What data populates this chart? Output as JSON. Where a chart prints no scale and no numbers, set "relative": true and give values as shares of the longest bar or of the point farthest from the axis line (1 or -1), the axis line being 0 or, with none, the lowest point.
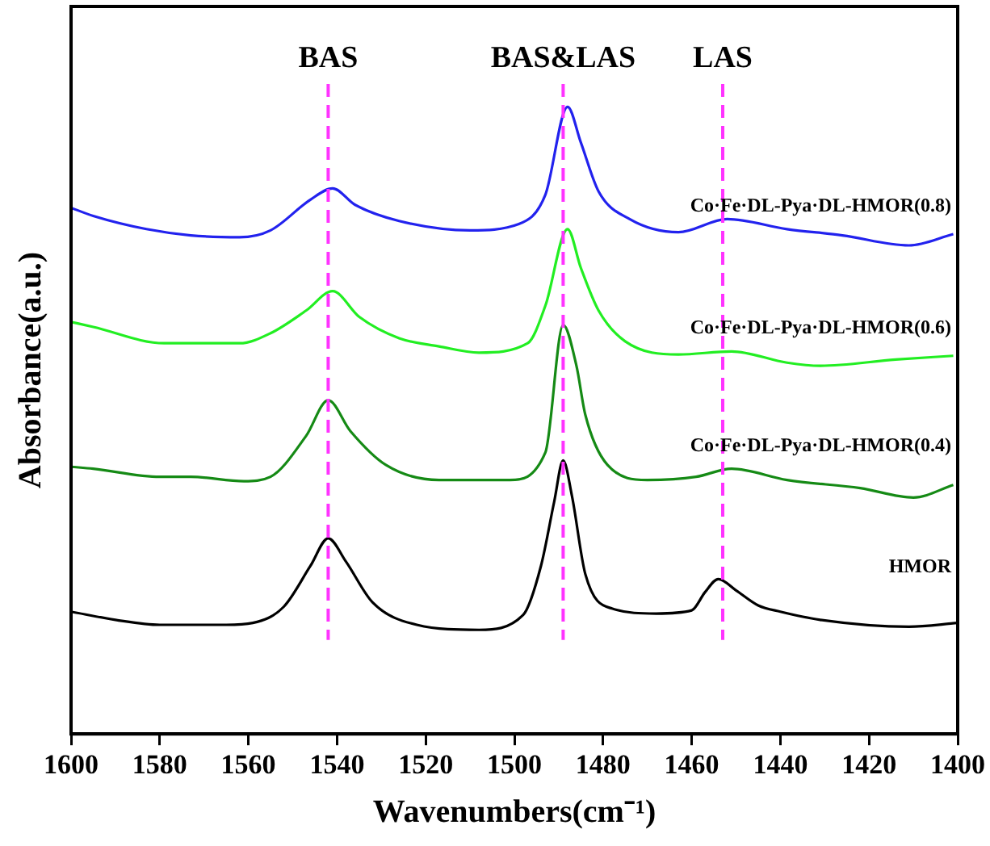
{
  "chart_data": {
    "type": "line",
    "relative": true,
    "xlabel": "Wavenumbers(cm⁻¹)",
    "ylabel": "Absorbance(a.u.)",
    "xlim": [
      1600,
      1400
    ],
    "xticks": [
      1600,
      1580,
      1560,
      1540,
      1520,
      1500,
      1480,
      1460,
      1440,
      1420,
      1400
    ],
    "marker": "none",
    "line_style": "solid",
    "legend": false,
    "series": [
      {
        "name": "HMOR",
        "color": "#000000",
        "x": [
          1600,
          1590,
          1580,
          1565,
          1559,
          1552,
          1546,
          1542,
          1538,
          1532,
          1522,
          1508,
          1498,
          1494,
          1491,
          1489,
          1487,
          1484,
          1478,
          1468,
          1460,
          1457,
          1454,
          1450,
          1445,
          1440,
          1431,
          1411,
          1400
        ],
        "values": [
          0.195,
          0.182,
          0.174,
          0.174,
          0.177,
          0.203,
          0.268,
          0.312,
          0.275,
          0.21,
          0.174,
          0.166,
          0.19,
          0.268,
          0.371,
          0.436,
          0.379,
          0.255,
          0.2,
          0.192,
          0.197,
          0.226,
          0.247,
          0.229,
          0.205,
          0.195,
          0.182,
          0.171,
          0.177
        ]
      },
      {
        "name": "Co·Fe·DL-Pya·DL-HMOR(0.4)",
        "color": "#158a15",
        "x": [
          1600,
          1595,
          1580,
          1573,
          1561,
          1555,
          1547,
          1542,
          1537,
          1529,
          1517,
          1501,
          1493,
          1489,
          1486,
          1484,
          1479,
          1470,
          1459,
          1451,
          1438.5,
          1422,
          1410,
          1401
        ],
        "values": [
          0.426,
          0.423,
          0.41,
          0.41,
          0.403,
          0.41,
          0.475,
          0.532,
          0.483,
          0.429,
          0.405,
          0.405,
          0.449,
          0.652,
          0.587,
          0.509,
          0.429,
          0.405,
          0.41,
          0.423,
          0.405,
          0.392,
          0.377,
          0.397
        ]
      },
      {
        "name": "Co·Fe·DL-Pya·DL-HMOR(0.6)",
        "color": "#22ee22",
        "x": [
          1600,
          1595,
          1579,
          1562,
          1555,
          1547,
          1541,
          1535,
          1526,
          1517,
          1508,
          1497,
          1493,
          1488,
          1485,
          1481,
          1475,
          1463,
          1451,
          1438.5,
          1431,
          1414,
          1401
        ],
        "values": [
          0.657,
          0.649,
          0.623,
          0.623,
          0.639,
          0.675,
          0.706,
          0.665,
          0.631,
          0.618,
          0.608,
          0.623,
          0.683,
          0.805,
          0.743,
          0.675,
          0.626,
          0.605,
          0.61,
          0.592,
          0.587,
          0.597,
          0.603
        ]
      },
      {
        "name": "Co·Fe·DL-Pya·DL-HMOR(0.8)",
        "color": "#2222ee",
        "x": [
          1600,
          1595,
          1583,
          1573,
          1562,
          1555,
          1546,
          1541,
          1536,
          1526,
          1510,
          1499,
          1493,
          1488,
          1485,
          1481,
          1474,
          1463,
          1452,
          1438.5,
          1426,
          1411,
          1401
        ],
        "values": [
          0.839,
          0.826,
          0.805,
          0.795,
          0.792,
          0.803,
          0.852,
          0.87,
          0.844,
          0.818,
          0.803,
          0.813,
          0.86,
          1.0,
          0.943,
          0.865,
          0.821,
          0.8,
          0.821,
          0.805,
          0.795,
          0.779,
          0.797
        ]
      }
    ],
    "ref_lines": [
      {
        "axis": "x",
        "value": 1542,
        "label": "BAS",
        "color": "#ff33ff",
        "line_style": "dashed"
      },
      {
        "axis": "x",
        "value": 1489,
        "label": "BAS&LAS",
        "color": "#ff33ff",
        "line_style": "dashed"
      },
      {
        "axis": "x",
        "value": 1453,
        "label": "LAS",
        "color": "#ff33ff",
        "line_style": "dashed"
      }
    ]
  }
}
